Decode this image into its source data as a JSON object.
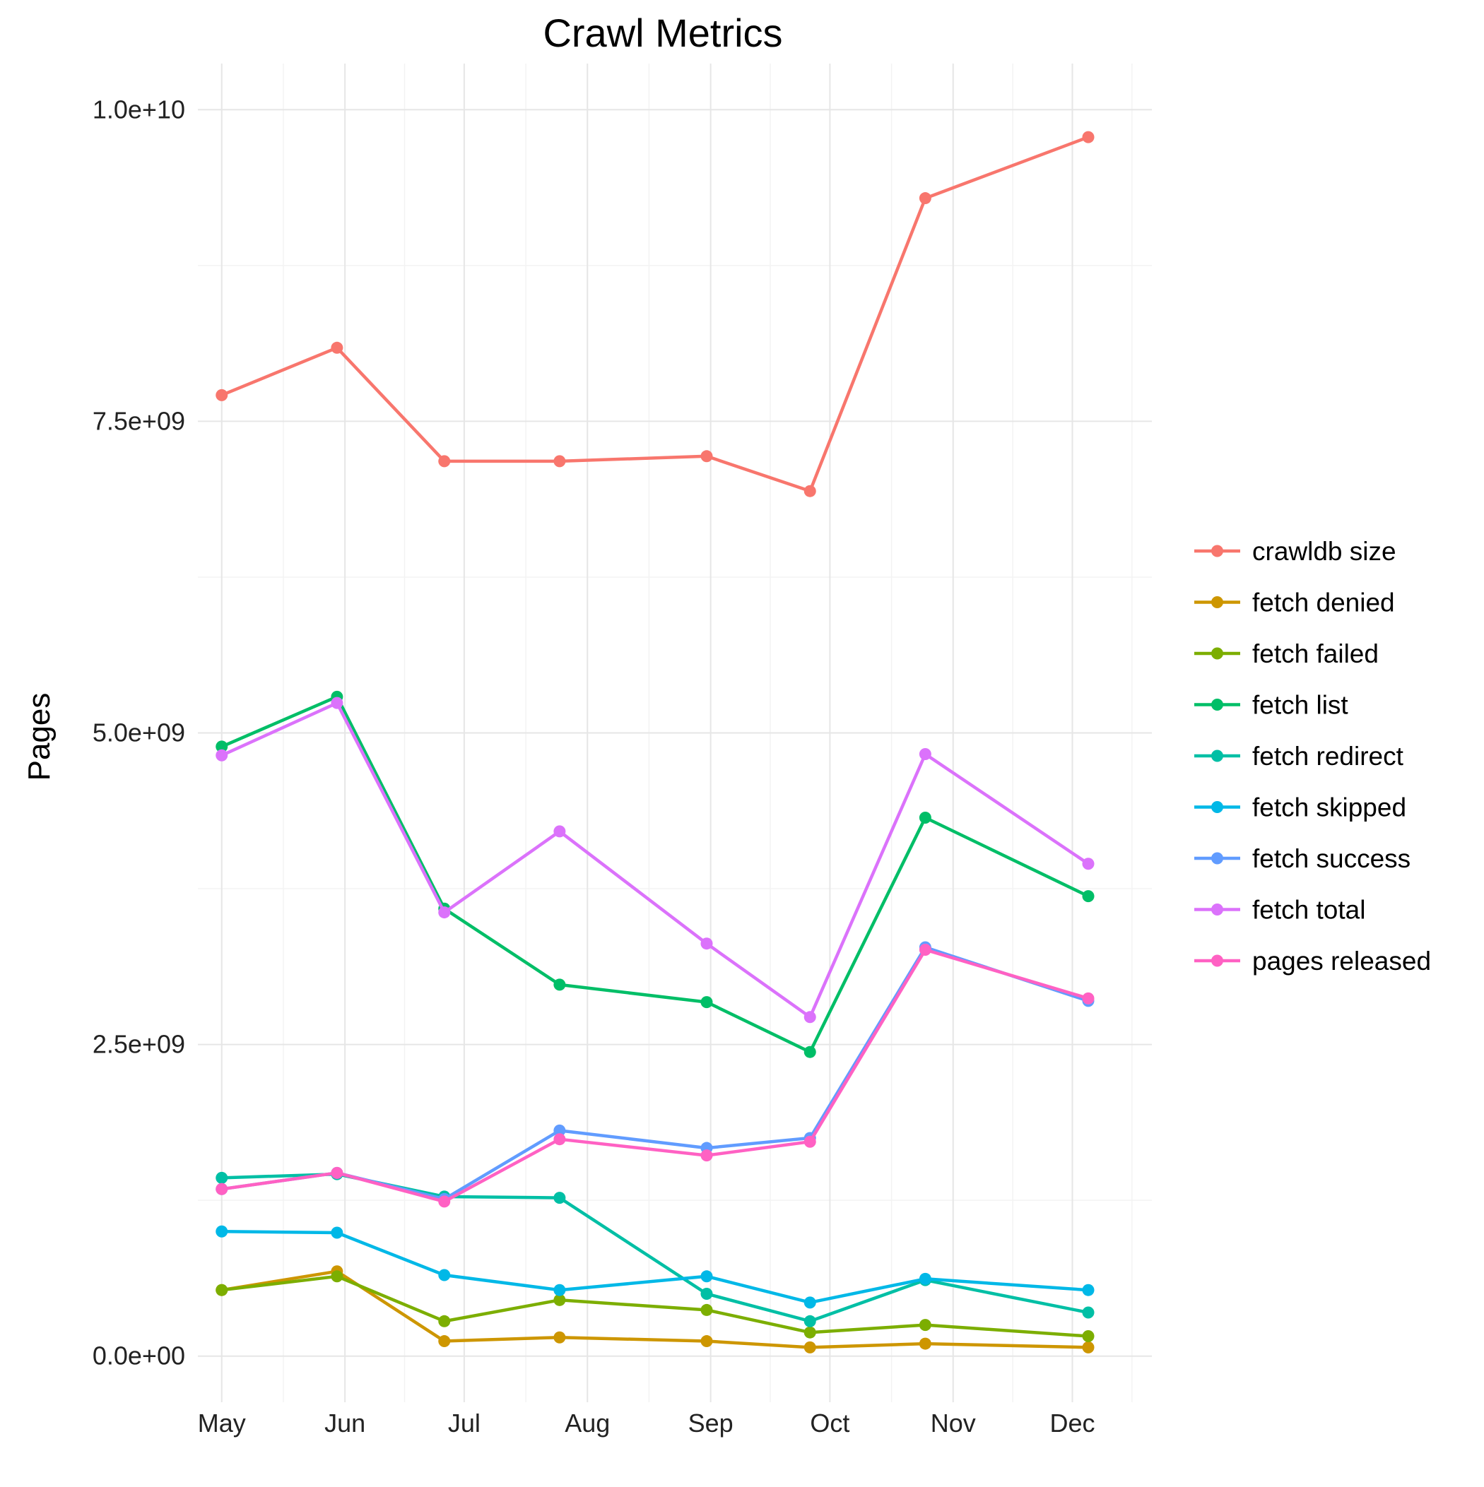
{
  "chart_data": {
    "type": "line",
    "title": "Crawl Metrics",
    "xlabel": "",
    "ylabel": "Pages",
    "x": [
      "2016-05-01",
      "2016-05-30",
      "2016-06-26",
      "2016-07-25",
      "2016-08-31",
      "2016-09-26",
      "2016-10-25",
      "2016-12-05"
    ],
    "xticks": [
      "May",
      "Jun",
      "Jul",
      "Aug",
      "Sep",
      "Oct",
      "Nov",
      "Dec"
    ],
    "xtick_dates": [
      "2016-05-01",
      "2016-06-01",
      "2016-07-01",
      "2016-08-01",
      "2016-09-01",
      "2016-10-01",
      "2016-11-01",
      "2016-12-01"
    ],
    "xlim": [
      "2016-04-25",
      "2016-12-21"
    ],
    "yticks": [
      "0.0e+00",
      "2.5e+09",
      "5.0e+09",
      "7.5e+09",
      "1.0e+10"
    ],
    "ytick_values": [
      0,
      2500000000,
      5000000000,
      7500000000,
      10000000000
    ],
    "ylim": [
      -370000000,
      10370000000
    ],
    "grid": true,
    "legend_position": "right",
    "series": [
      {
        "name": "crawldb size",
        "color": "#F8766D",
        "values": [
          7710000000,
          8090000000,
          7180000000,
          7180000000,
          7220000000,
          6940000000,
          9290000000,
          9780000000
        ]
      },
      {
        "name": "fetch denied",
        "color": "#CD9600",
        "values": [
          530000000,
          680000000,
          120000000,
          150000000,
          120000000,
          70000000,
          100000000,
          70000000
        ]
      },
      {
        "name": "fetch failed",
        "color": "#7CAE00",
        "values": [
          530000000,
          640000000,
          280000000,
          450000000,
          370000000,
          190000000,
          250000000,
          160000000
        ]
      },
      {
        "name": "fetch list",
        "color": "#00BE67",
        "values": [
          4890000000,
          5290000000,
          3590000000,
          2980000000,
          2840000000,
          2440000000,
          4320000000,
          3690000000
        ]
      },
      {
        "name": "fetch redirect",
        "color": "#00BFA5",
        "values": [
          1430000000,
          1460000000,
          1280000000,
          1270000000,
          500000000,
          280000000,
          610000000,
          350000000
        ]
      },
      {
        "name": "fetch skipped",
        "color": "#00B8E7",
        "values": [
          1000000000,
          990000000,
          650000000,
          530000000,
          640000000,
          430000000,
          620000000,
          530000000
        ]
      },
      {
        "name": "fetch success",
        "color": "#619CFF",
        "values": [
          1340000000,
          1470000000,
          1260000000,
          1810000000,
          1670000000,
          1750000000,
          3280000000,
          2850000000
        ]
      },
      {
        "name": "fetch total",
        "color": "#DB72FB",
        "values": [
          4820000000,
          5240000000,
          3560000000,
          4210000000,
          3310000000,
          2720000000,
          4830000000,
          3950000000
        ]
      },
      {
        "name": "pages released",
        "color": "#FF61C3",
        "values": [
          1340000000,
          1470000000,
          1240000000,
          1740000000,
          1610000000,
          1720000000,
          3260000000,
          2870000000
        ]
      }
    ]
  }
}
